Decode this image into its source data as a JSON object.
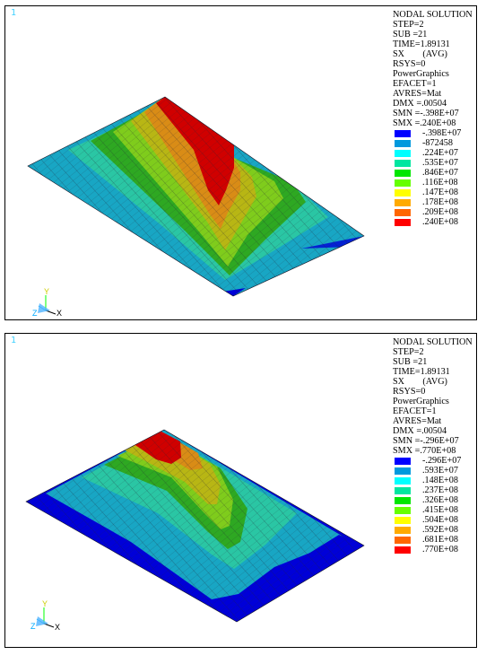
{
  "panels": [
    {
      "id": "top",
      "window_number": "1",
      "legend": {
        "lines": [
          "NODAL SOLUTION",
          "STEP=2",
          "SUB =21",
          "TIME=1.89131",
          "SX        (AVG)",
          "RSYS=0",
          "PowerGraphics",
          "EFACET=1",
          "AVRES=Mat",
          "DMX =.00504",
          "SMN =-.398E+07",
          "SMX =.240E+08"
        ],
        "contour_values": [
          "-.398E+07",
          "-872458",
          ".224E+07",
          ".535E+07",
          ".846E+07",
          ".116E+08",
          ".147E+08",
          ".178E+08",
          ".209E+08",
          ".240E+08"
        ]
      },
      "triad": {
        "x": "X",
        "y": "Y",
        "z": "Z"
      }
    },
    {
      "id": "bottom",
      "window_number": "1",
      "legend": {
        "lines": [
          "NODAL SOLUTION",
          "STEP=2",
          "SUB =21",
          "TIME=1.89131",
          "SX        (AVG)",
          "RSYS=0",
          "PowerGraphics",
          "EFACET=1",
          "AVRES=Mat",
          "DMX =.00504",
          "SMN =-.296E+07",
          "SMX =.770E+08"
        ],
        "contour_values": [
          "-.296E+07",
          ".593E+07",
          ".148E+08",
          ".237E+08",
          ".326E+08",
          ".415E+08",
          ".504E+08",
          ".592E+08",
          ".681E+08",
          ".770E+08"
        ]
      },
      "triad": {
        "x": "X",
        "y": "Y",
        "z": "Z"
      }
    }
  ],
  "contour_colors": [
    "#0000ff",
    "#0099dd",
    "#00ffff",
    "#00e6a0",
    "#00e600",
    "#66ff00",
    "#ffff00",
    "#ffaa00",
    "#ff6600",
    "#ff0000"
  ],
  "plate_colors": {
    "blue": "#0000d8",
    "cyan_blue": "#1aa6c8",
    "teal": "#2ac6a4",
    "green": "#2ea822",
    "light_green": "#7fcc1c",
    "olive": "#b8b614",
    "orange": "#d98c16",
    "red": "#d00000"
  }
}
